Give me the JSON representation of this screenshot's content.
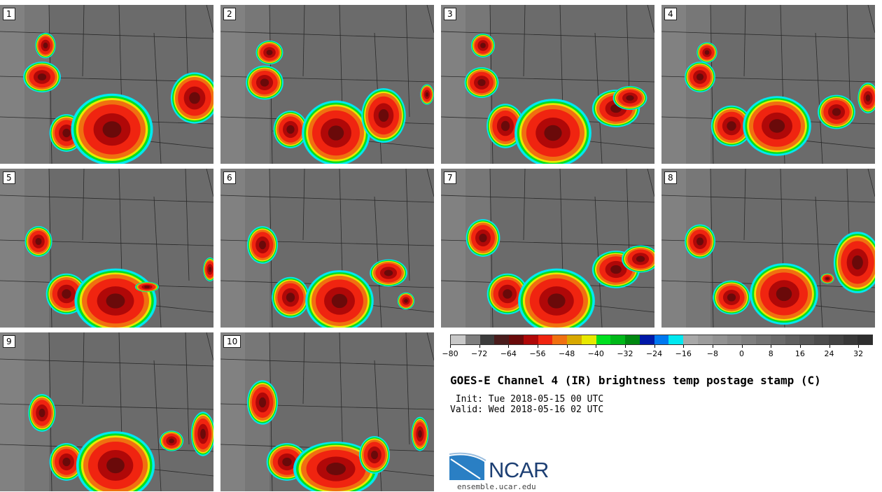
{
  "panels": [
    {
      "label": "1"
    },
    {
      "label": "2"
    },
    {
      "label": "3"
    },
    {
      "label": "4"
    },
    {
      "label": "5"
    },
    {
      "label": "6"
    },
    {
      "label": "7"
    },
    {
      "label": "8"
    },
    {
      "label": "9"
    },
    {
      "label": "10"
    }
  ],
  "colorbar": {
    "colors": [
      "#c8c8c8",
      "#7e7e7e",
      "#3c3c3c",
      "#4a1c1c",
      "#6a0a0a",
      "#b00808",
      "#f02410",
      "#f07010",
      "#d8a800",
      "#e8e800",
      "#00e020",
      "#00b818",
      "#008810",
      "#0018a8",
      "#0078f0",
      "#00e8f0",
      "#a8a8a8",
      "#9c9c9c",
      "#929292",
      "#888888",
      "#7e7e7e",
      "#747474",
      "#6a6a6a",
      "#606060",
      "#565656",
      "#4c4c4c",
      "#424242",
      "#383838",
      "#2e2e2e"
    ],
    "ticks": [
      "−80",
      "−72",
      "−64",
      "−56",
      "−48",
      "−40",
      "−32",
      "−24",
      "−16",
      "−8",
      "0",
      "8",
      "16",
      "24",
      "32"
    ]
  },
  "title": "GOES-E Channel 4 (IR) brightness temp postage stamp (C)",
  "init": " Init: Tue 2018-05-15 00 UTC",
  "valid": "Valid: Wed 2018-05-16 02 UTC",
  "logo": {
    "wordmark": "NCAR",
    "url": "ensemble.ucar.edu"
  }
}
